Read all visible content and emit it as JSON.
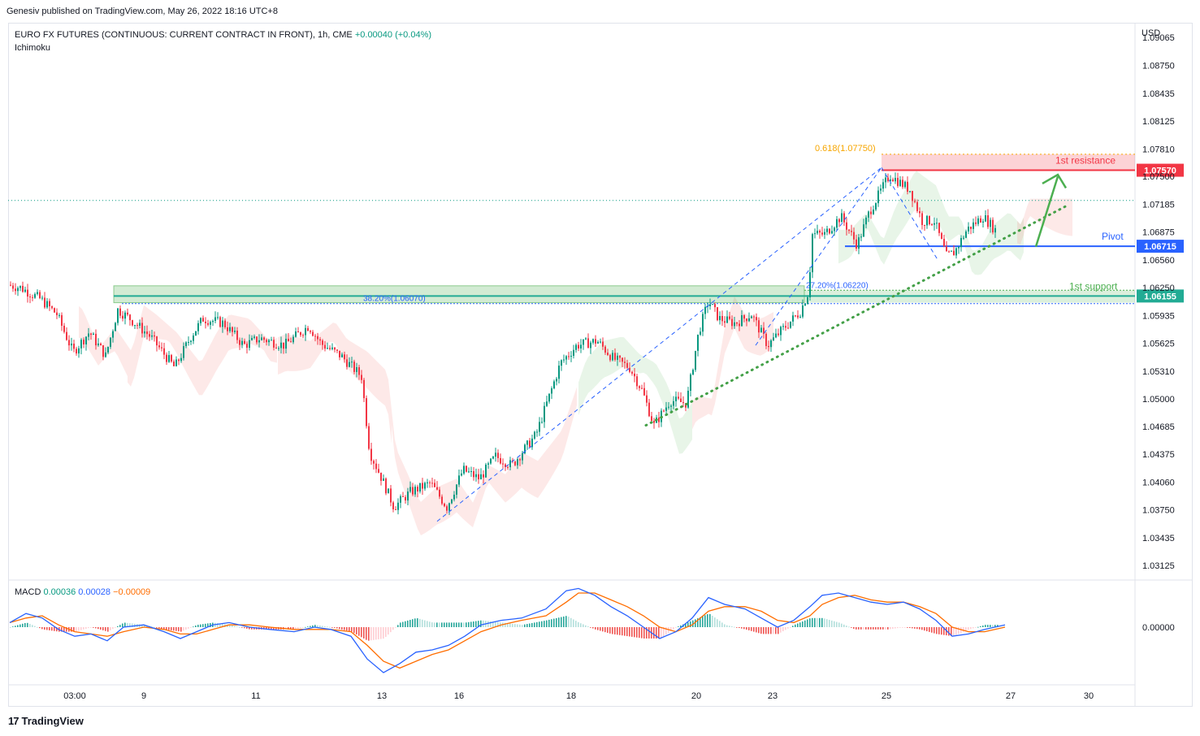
{
  "publisher": "Genesiv published on TradingView.com, May 26, 2022 18:16 UTC+8",
  "header": {
    "symbol": "EURO FX FUTURES (CONTINUOUS: CURRENT CONTRACT IN FRONT), 1h, CME",
    "change": "+0.00040 (+0.04%)",
    "indicator": "Ichimoku"
  },
  "macd_legend": {
    "label": "MACD",
    "v1": "0.00036",
    "v2": "0.00028",
    "v3": "−0.00009"
  },
  "currency": "USD",
  "footer": {
    "logo": "17",
    "brand": "TradingView"
  },
  "chart_data": {
    "type": "candlestick",
    "title": "EURO FX FUTURES (CONTINUOUS: CURRENT CONTRACT IN FRONT), 1h, CME",
    "y_ticks": [
      "1.09065",
      "1.08750",
      "1.08435",
      "1.08125",
      "1.07810",
      "1.07500",
      "1.07185",
      "1.06875",
      "1.06560",
      "1.06250",
      "1.05935",
      "1.05625",
      "1.05310",
      "1.05000",
      "1.04685",
      "1.04375",
      "1.04060",
      "1.03750",
      "1.03435",
      "1.03125"
    ],
    "ylim": [
      1.0296,
      1.0922
    ],
    "x_ticks": [
      "03:00",
      "9",
      "11",
      "13",
      "16",
      "18",
      "20",
      "23",
      "25",
      "27",
      "30"
    ],
    "series": [
      {
        "name": "price path (approx)",
        "values": [
          [
            0,
            1.0628
          ],
          [
            15,
            1.0625
          ],
          [
            40,
            1.0612
          ],
          [
            60,
            1.0595
          ],
          [
            80,
            1.0552
          ],
          [
            100,
            1.0575
          ],
          [
            120,
            1.0548
          ],
          [
            135,
            1.06
          ],
          [
            150,
            1.059
          ],
          [
            175,
            1.057
          ],
          [
            205,
            1.0535
          ],
          [
            225,
            1.057
          ],
          [
            240,
            1.059
          ],
          [
            265,
            1.0585
          ],
          [
            290,
            1.056
          ],
          [
            310,
            1.0568
          ],
          [
            340,
            1.056
          ],
          [
            370,
            1.0582
          ],
          [
            385,
            1.0562
          ],
          [
            410,
            1.0548
          ],
          [
            435,
            1.0525
          ],
          [
            445,
            1.044
          ],
          [
            460,
            1.041
          ],
          [
            475,
            1.0378
          ],
          [
            495,
            1.0395
          ],
          [
            520,
            1.0405
          ],
          [
            540,
            1.0378
          ],
          [
            560,
            1.042
          ],
          [
            580,
            1.041
          ],
          [
            600,
            1.0435
          ],
          [
            620,
            1.0425
          ],
          [
            650,
            1.046
          ],
          [
            680,
            1.054
          ],
          [
            700,
            1.056
          ],
          [
            725,
            1.0565
          ],
          [
            745,
            1.0545
          ],
          [
            765,
            1.0535
          ],
          [
            780,
            1.051
          ],
          [
            795,
            1.047
          ],
          [
            815,
            1.0498
          ],
          [
            835,
            1.0495
          ],
          [
            850,
            1.0575
          ],
          [
            862,
            1.061
          ],
          [
            875,
            1.059
          ],
          [
            895,
            1.0585
          ],
          [
            915,
            1.0595
          ],
          [
            935,
            1.056
          ],
          [
            950,
            1.0575
          ],
          [
            975,
            1.0598
          ],
          [
            985,
            1.062
          ],
          [
            990,
            1.0685
          ],
          [
            1005,
            1.0685
          ],
          [
            1025,
            1.0705
          ],
          [
            1045,
            1.0673
          ],
          [
            1060,
            1.071
          ],
          [
            1075,
            1.0735
          ],
          [
            1085,
            1.0752
          ],
          [
            1095,
            1.0745
          ],
          [
            1110,
            1.0735
          ],
          [
            1125,
            1.07
          ],
          [
            1140,
            1.07
          ],
          [
            1155,
            1.066
          ],
          [
            1165,
            1.0665
          ],
          [
            1180,
            1.069
          ],
          [
            1200,
            1.0705
          ],
          [
            1215,
            1.069
          ],
          [
            1225,
            1.072
          ]
        ]
      }
    ],
    "annotations": [
      {
        "text": "0.618(1.07750)",
        "value": 1.0775
      },
      {
        "text": "1st resistance",
        "value": 1.0757
      },
      {
        "text": "Pivot",
        "value": 1.06715
      },
      {
        "text": "1st support",
        "value": 1.06155
      },
      {
        "text": "38.20%(1.06070)",
        "value": 1.0607
      },
      {
        "text": "27.20%(1.06220)",
        "value": 1.0622
      }
    ],
    "price_tags": [
      {
        "text": "1.07570",
        "color": "#f23645"
      },
      {
        "text": "1.06715",
        "color": "#2962ff"
      },
      {
        "text": "1.06155",
        "color": "#22ab94"
      }
    ],
    "macd": {
      "zero_label": "0.00000",
      "fast": [
        [
          0,
          0.2
        ],
        [
          20,
          0.6
        ],
        [
          40,
          0.4
        ],
        [
          60,
          -0.1
        ],
        [
          80,
          -0.4
        ],
        [
          100,
          -0.3
        ],
        [
          120,
          -0.6
        ],
        [
          140,
          0.0
        ],
        [
          165,
          0.1
        ],
        [
          190,
          -0.2
        ],
        [
          210,
          -0.5
        ],
        [
          230,
          -0.2
        ],
        [
          250,
          0.1
        ],
        [
          270,
          0.2
        ],
        [
          295,
          0.0
        ],
        [
          320,
          -0.1
        ],
        [
          350,
          -0.2
        ],
        [
          375,
          0.0
        ],
        [
          395,
          -0.1
        ],
        [
          420,
          -0.4
        ],
        [
          440,
          -1.4
        ],
        [
          460,
          -2.0
        ],
        [
          480,
          -1.6
        ],
        [
          500,
          -1.1
        ],
        [
          520,
          -1.0
        ],
        [
          540,
          -0.8
        ],
        [
          560,
          -0.4
        ],
        [
          580,
          0.1
        ],
        [
          605,
          0.3
        ],
        [
          630,
          0.4
        ],
        [
          660,
          0.8
        ],
        [
          685,
          1.6
        ],
        [
          700,
          1.7
        ],
        [
          720,
          1.4
        ],
        [
          740,
          0.9
        ],
        [
          760,
          0.5
        ],
        [
          780,
          0.0
        ],
        [
          800,
          -0.5
        ],
        [
          820,
          -0.2
        ],
        [
          840,
          0.4
        ],
        [
          860,
          1.3
        ],
        [
          880,
          1.0
        ],
        [
          905,
          0.8
        ],
        [
          925,
          0.4
        ],
        [
          945,
          0.0
        ],
        [
          965,
          0.3
        ],
        [
          985,
          0.9
        ],
        [
          1000,
          1.4
        ],
        [
          1020,
          1.5
        ],
        [
          1040,
          1.3
        ],
        [
          1060,
          1.1
        ],
        [
          1080,
          1.0
        ],
        [
          1100,
          1.1
        ],
        [
          1120,
          0.8
        ],
        [
          1140,
          0.3
        ],
        [
          1160,
          -0.4
        ],
        [
          1180,
          -0.3
        ],
        [
          1200,
          -0.1
        ],
        [
          1225,
          0.1
        ]
      ],
      "signal": [
        [
          0,
          0.2
        ],
        [
          20,
          0.4
        ],
        [
          40,
          0.5
        ],
        [
          60,
          0.1
        ],
        [
          80,
          -0.2
        ],
        [
          100,
          -0.3
        ],
        [
          120,
          -0.4
        ],
        [
          140,
          -0.2
        ],
        [
          165,
          0.0
        ],
        [
          190,
          -0.1
        ],
        [
          210,
          -0.3
        ],
        [
          230,
          -0.3
        ],
        [
          250,
          -0.1
        ],
        [
          270,
          0.1
        ],
        [
          295,
          0.1
        ],
        [
          320,
          0.0
        ],
        [
          350,
          -0.1
        ],
        [
          375,
          -0.1
        ],
        [
          395,
          -0.1
        ],
        [
          420,
          -0.2
        ],
        [
          440,
          -0.8
        ],
        [
          460,
          -1.5
        ],
        [
          480,
          -1.8
        ],
        [
          500,
          -1.5
        ],
        [
          520,
          -1.2
        ],
        [
          540,
          -1.0
        ],
        [
          560,
          -0.6
        ],
        [
          580,
          -0.2
        ],
        [
          605,
          0.1
        ],
        [
          630,
          0.3
        ],
        [
          660,
          0.5
        ],
        [
          685,
          1.1
        ],
        [
          700,
          1.5
        ],
        [
          720,
          1.5
        ],
        [
          740,
          1.2
        ],
        [
          760,
          0.9
        ],
        [
          780,
          0.5
        ],
        [
          800,
          0.0
        ],
        [
          820,
          -0.2
        ],
        [
          840,
          0.1
        ],
        [
          860,
          0.7
        ],
        [
          880,
          0.9
        ],
        [
          905,
          0.9
        ],
        [
          925,
          0.7
        ],
        [
          945,
          0.3
        ],
        [
          965,
          0.2
        ],
        [
          985,
          0.5
        ],
        [
          1000,
          1.0
        ],
        [
          1020,
          1.3
        ],
        [
          1040,
          1.4
        ],
        [
          1060,
          1.2
        ],
        [
          1080,
          1.1
        ],
        [
          1100,
          1.1
        ],
        [
          1120,
          0.9
        ],
        [
          1140,
          0.6
        ],
        [
          1160,
          0.0
        ],
        [
          1180,
          -0.2
        ],
        [
          1200,
          -0.2
        ],
        [
          1225,
          0.0
        ]
      ]
    }
  }
}
